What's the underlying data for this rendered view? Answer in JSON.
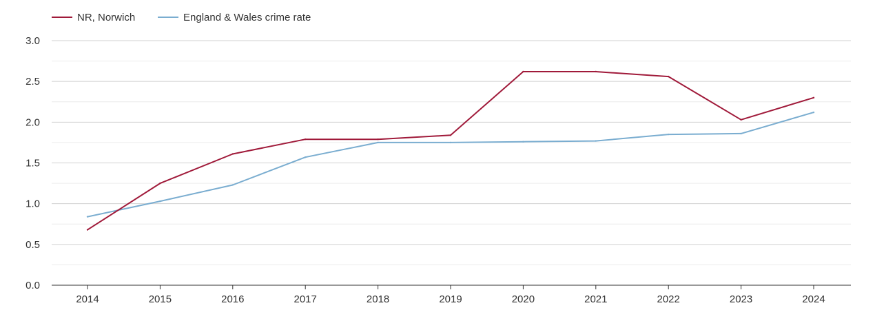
{
  "chart_data": {
    "type": "line",
    "title": "",
    "xlabel": "",
    "ylabel": "",
    "x": [
      "2014",
      "2015",
      "2016",
      "2017",
      "2018",
      "2019",
      "2020",
      "2021",
      "2022",
      "2023",
      "2024"
    ],
    "yticks": [
      "0.0",
      "0.5",
      "1.0",
      "1.5",
      "2.0",
      "2.5",
      "3.0"
    ],
    "ylim": [
      0,
      3.0
    ],
    "grid": true,
    "legend_position": "top-left",
    "series": [
      {
        "name": "NR, Norwich",
        "color": "#a01a3a",
        "values": [
          0.68,
          1.25,
          1.61,
          1.79,
          1.79,
          1.84,
          2.62,
          2.62,
          2.56,
          2.03,
          2.3
        ]
      },
      {
        "name": "England & Wales crime rate",
        "color": "#7aadd0",
        "values": [
          0.84,
          1.03,
          1.23,
          1.57,
          1.75,
          1.75,
          1.76,
          1.77,
          1.85,
          1.86,
          2.12
        ]
      }
    ]
  }
}
